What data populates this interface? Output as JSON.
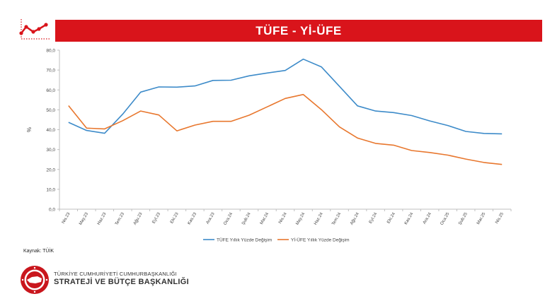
{
  "header": {
    "title": "TÜFE - Yİ-ÜFE"
  },
  "source": "Kaynak: TÜİK",
  "organization": {
    "line1": "TÜRKİYE CUMHURİYETİ CUMHURBAŞKANLIĞI",
    "line2": "STRATEJİ VE BÜTÇE BAŞKANLIĞI"
  },
  "colors": {
    "title_bar": "#d9141b",
    "tufe": "#3d8bc9",
    "yiufe": "#e8772e"
  },
  "chart_data": {
    "type": "line",
    "title": "",
    "xlabel": "",
    "ylabel": "%",
    "ylim": [
      0,
      80
    ],
    "yticks": [
      "0,0",
      "10,0",
      "20,0",
      "30,0",
      "40,0",
      "50,0",
      "60,0",
      "70,0",
      "80,0"
    ],
    "grid": false,
    "legend_position": "bottom",
    "categories": [
      "Nis.23",
      "May.23",
      "Haz.23",
      "Tem.23",
      "Ağu.23",
      "Eyl.23",
      "Eki.23",
      "Kas.23",
      "Ara.23",
      "Oca.24",
      "Şub.24",
      "Mar.24",
      "Nis.24",
      "May.24",
      "Haz.24",
      "Tem.24",
      "Ağu.24",
      "Eyl.24",
      "Eki.24",
      "Kas.24",
      "Ara.24",
      "Oca.25",
      "Şub.25",
      "Mar.25",
      "Nis.25"
    ],
    "series": [
      {
        "name": "TÜFE Yıllık Yüzde Değişim",
        "color": "#3d8bc9",
        "values": [
          43.7,
          39.6,
          38.2,
          47.8,
          58.9,
          61.5,
          61.4,
          62.0,
          64.8,
          64.9,
          67.1,
          68.5,
          69.8,
          75.5,
          71.6,
          61.8,
          52.0,
          49.4,
          48.6,
          47.1,
          44.4,
          42.1,
          39.1,
          38.1,
          37.9
        ]
      },
      {
        "name": "Yİ-ÜFE Yıllık Yüzde Değişim",
        "color": "#e8772e",
        "values": [
          52.1,
          40.8,
          40.4,
          44.5,
          49.4,
          47.4,
          39.4,
          42.3,
          44.2,
          44.2,
          47.3,
          51.5,
          55.7,
          57.7,
          50.1,
          41.4,
          35.8,
          33.1,
          32.2,
          29.5,
          28.5,
          27.2,
          25.2,
          23.5,
          22.5
        ]
      }
    ]
  }
}
